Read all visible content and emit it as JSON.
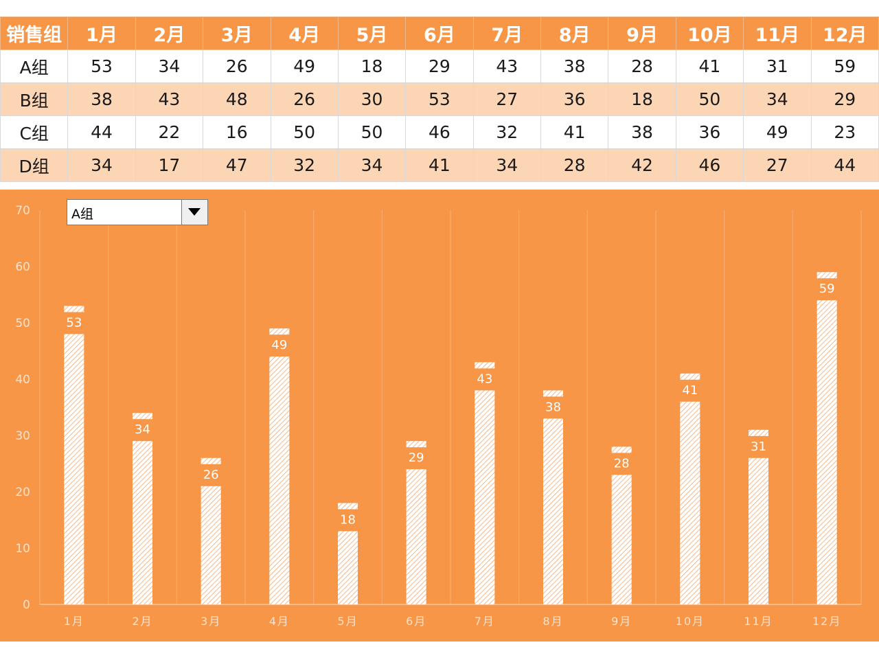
{
  "table": {
    "header": [
      "销售组",
      "1月",
      "2月",
      "3月",
      "4月",
      "5月",
      "6月",
      "7月",
      "8月",
      "9月",
      "10月",
      "11月",
      "12月"
    ],
    "rows": [
      {
        "group": "A组",
        "values": [
          53,
          34,
          26,
          49,
          18,
          29,
          43,
          38,
          28,
          41,
          31,
          59
        ]
      },
      {
        "group": "B组",
        "values": [
          38,
          43,
          48,
          26,
          30,
          53,
          27,
          36,
          18,
          50,
          34,
          29
        ]
      },
      {
        "group": "C组",
        "values": [
          44,
          22,
          16,
          50,
          50,
          46,
          32,
          41,
          38,
          36,
          49,
          23
        ]
      },
      {
        "group": "D组",
        "values": [
          34,
          17,
          47,
          32,
          34,
          41,
          34,
          28,
          42,
          46,
          27,
          44
        ]
      }
    ]
  },
  "selector": {
    "selected": "A组"
  },
  "colors": {
    "accent": "#f79646",
    "band": "#fcd5b5",
    "bar": "#ffffff"
  },
  "chart_data": {
    "type": "bar",
    "categories": [
      "1月",
      "2月",
      "3月",
      "4月",
      "5月",
      "6月",
      "7月",
      "8月",
      "9月",
      "10月",
      "11月",
      "12月"
    ],
    "series": [
      {
        "values": [
          53,
          34,
          26,
          49,
          18,
          29,
          43,
          38,
          28,
          41,
          31,
          59
        ]
      }
    ],
    "ylim": [
      0,
      70
    ],
    "yticks": [
      0,
      10,
      20,
      30,
      40,
      50,
      60,
      70
    ],
    "grid": true
  }
}
